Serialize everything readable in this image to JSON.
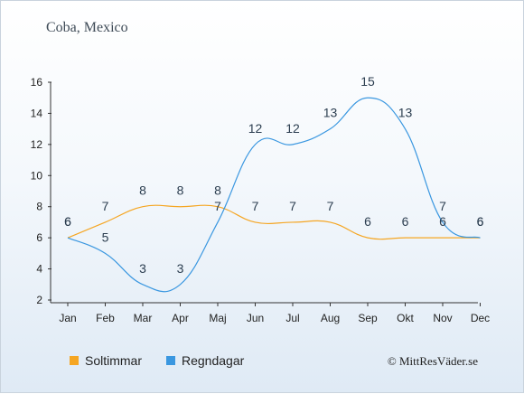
{
  "chart_data": {
    "type": "line",
    "title": "Coba, Mexico",
    "categories": [
      "Jan",
      "Feb",
      "Mar",
      "Apr",
      "Maj",
      "Jun",
      "Jul",
      "Aug",
      "Sep",
      "Okt",
      "Nov",
      "Dec"
    ],
    "series": [
      {
        "name": "Soltimmar",
        "color": "#f5a623",
        "values": [
          6,
          7,
          8,
          8,
          8,
          7,
          7,
          7,
          6,
          6,
          6,
          6
        ]
      },
      {
        "name": "Regndagar",
        "color": "#3a97e0",
        "values": [
          6,
          5,
          3,
          3,
          7,
          12,
          12,
          13,
          15,
          13,
          7,
          6
        ]
      }
    ],
    "ylim": [
      2,
      16
    ],
    "yticks": [
      2,
      4,
      6,
      8,
      10,
      12,
      14,
      16
    ],
    "xlabel": "",
    "ylabel": "",
    "legend_position": "bottom-left"
  },
  "credit": "© MittResVäder.se"
}
